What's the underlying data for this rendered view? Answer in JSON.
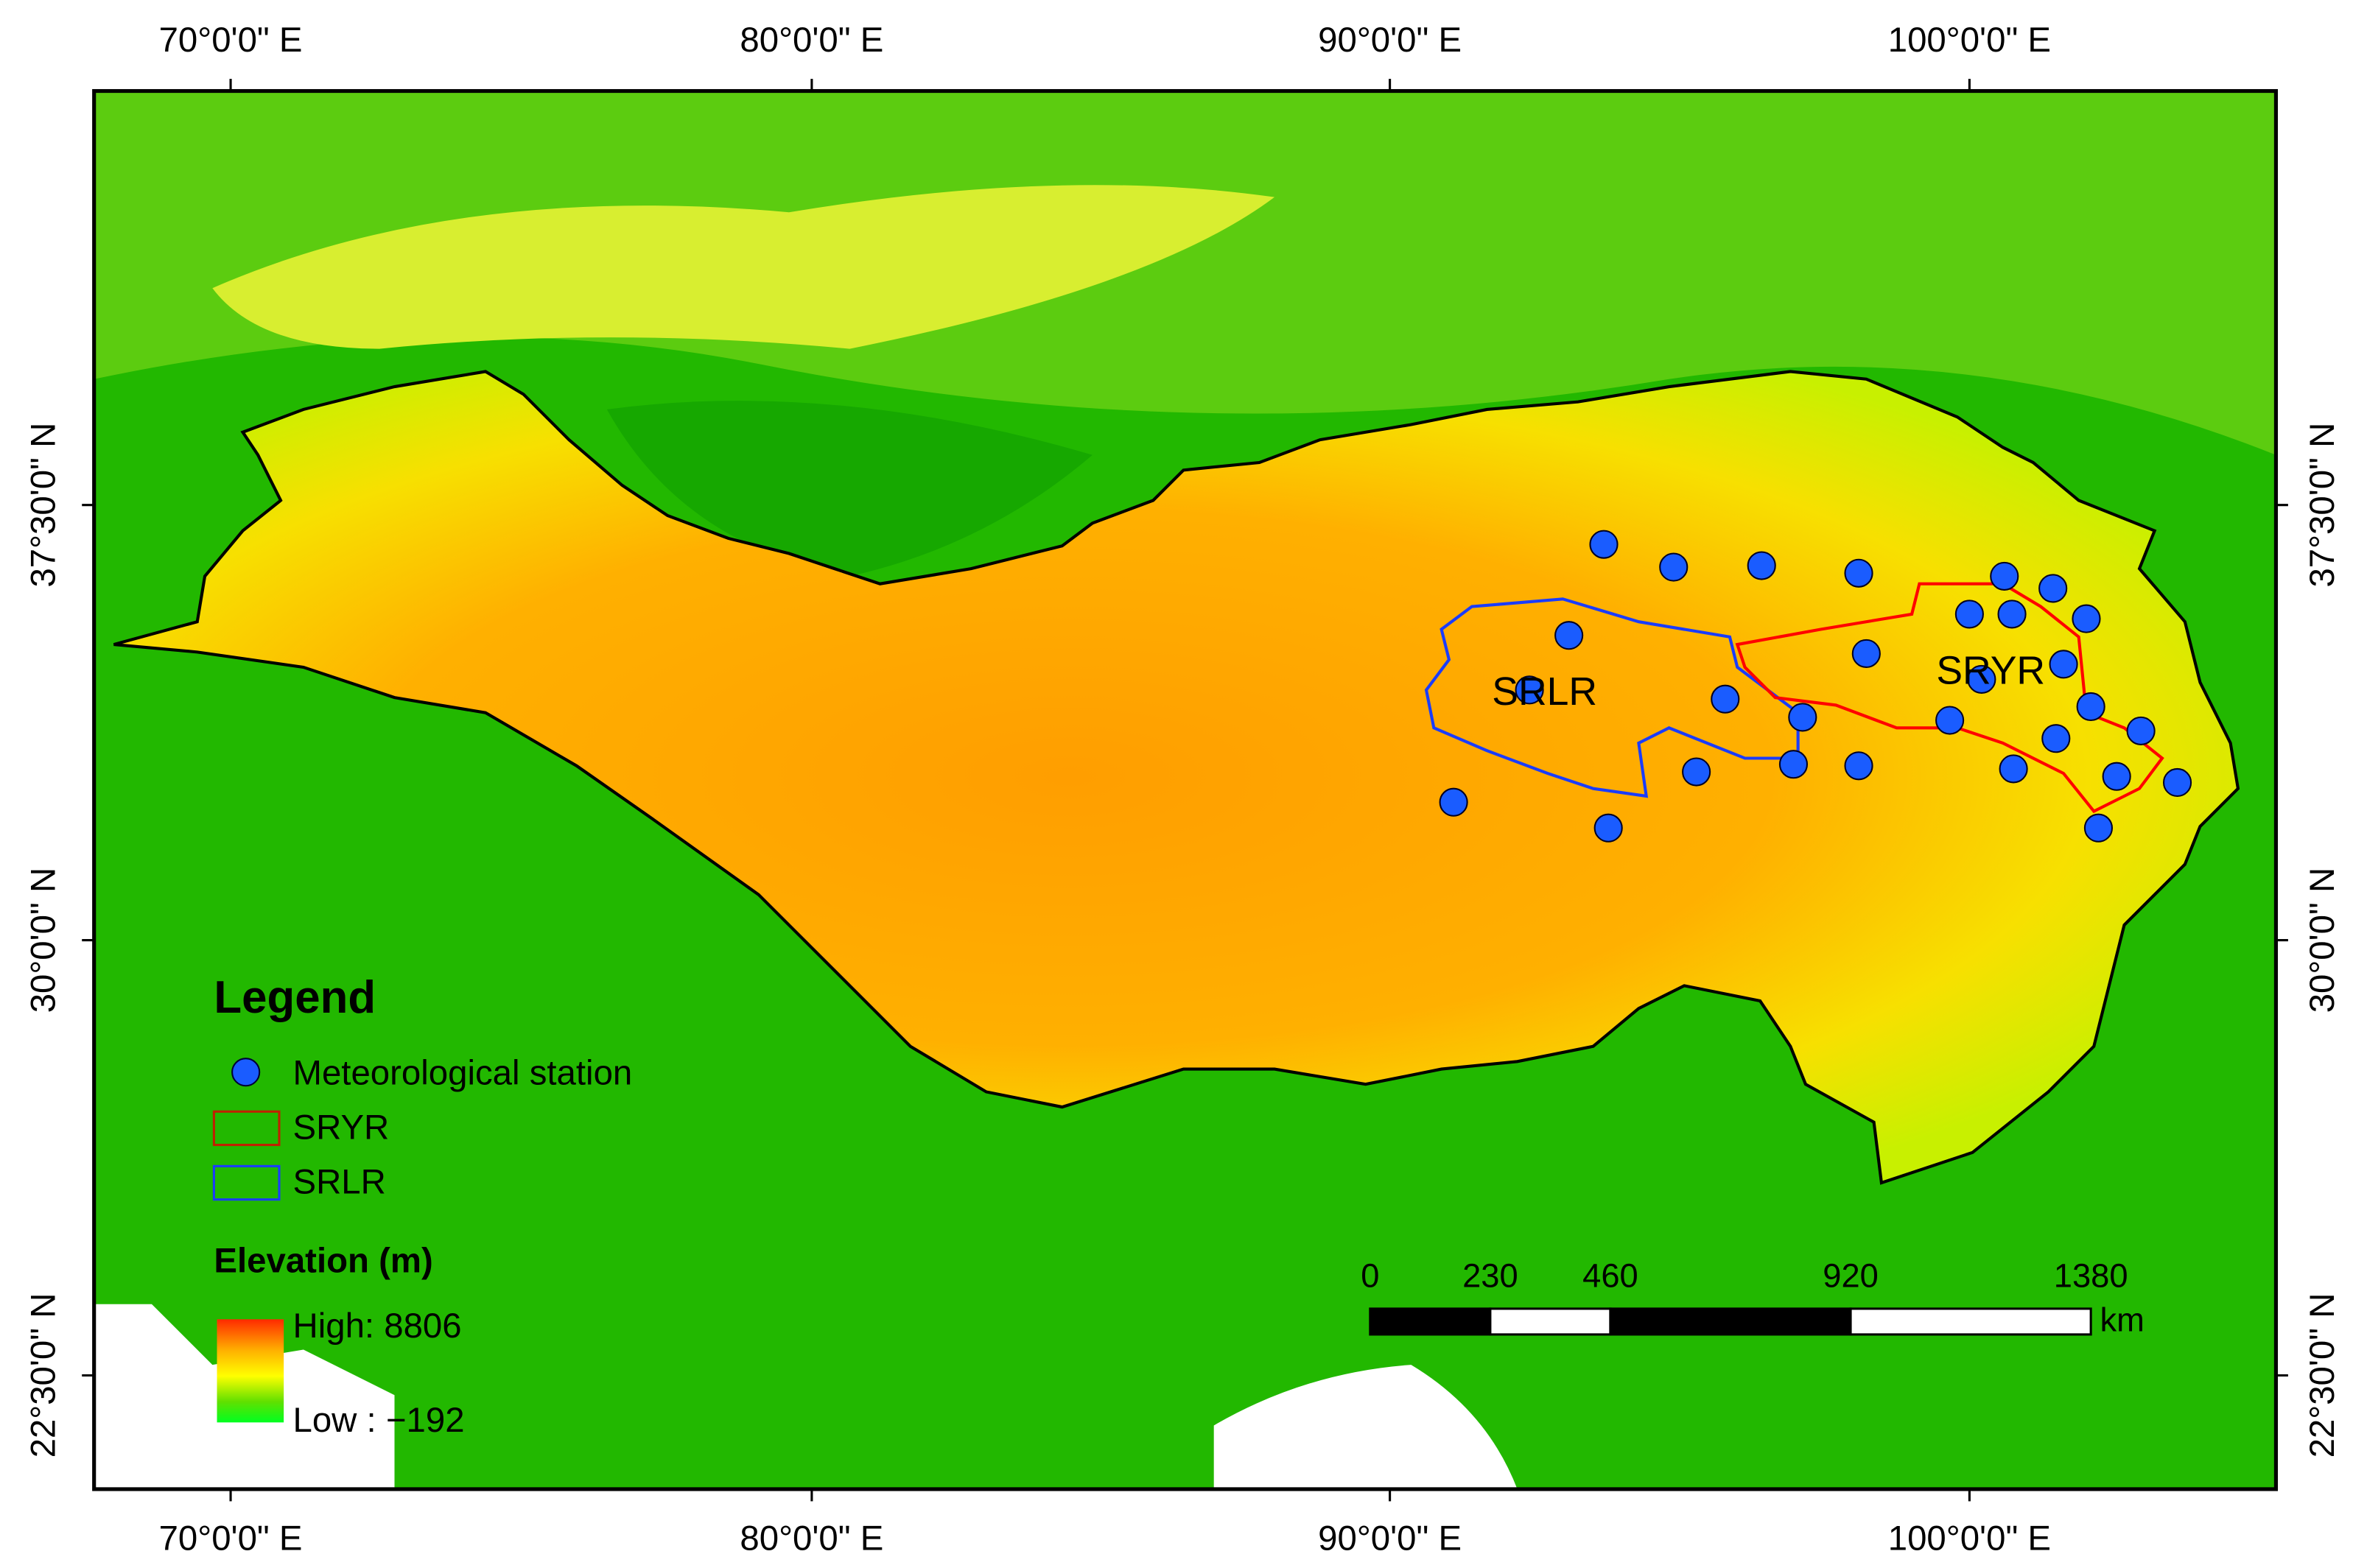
{
  "graticule": {
    "lon_top": [
      "70°0'0\" E",
      "80°0'0\" E",
      "90°0'0\" E",
      "100°0'0\" E"
    ],
    "lon_bottom": [
      "70°0'0\" E",
      "80°0'0\" E",
      "90°0'0\" E",
      "100°0'0\" E"
    ],
    "lat_left": [
      "37°30'0\" N",
      "30°0'0\" N",
      "22°30'0\" N"
    ],
    "lat_right": [
      "37°30'0\" N",
      "30°0'0\" N",
      "22°30'0\" N"
    ]
  },
  "legend": {
    "title": "Legend",
    "items": [
      "Meteorological station",
      "SRYR",
      "SRLR"
    ]
  },
  "elevation": {
    "title": "Elevation (m)",
    "high": "High: 8806",
    "low": "Low : −192"
  },
  "scale_bar": {
    "ticks": [
      0,
      230,
      460,
      920,
      1380
    ],
    "unit": "km"
  },
  "regions": [
    "SRLR",
    "SRYR"
  ]
}
